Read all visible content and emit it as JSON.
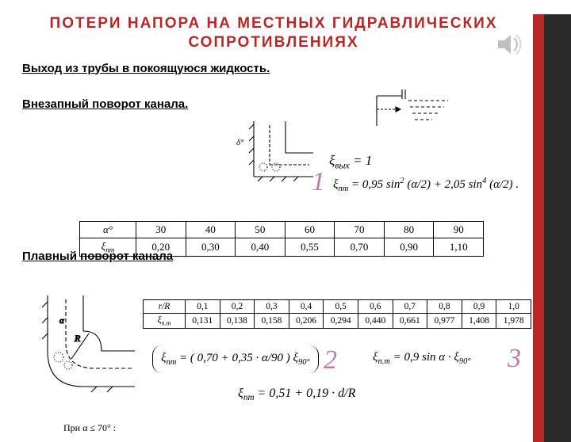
{
  "title_line1": "ПОТЕРИ  НАПОРА  НА  МЕСТНЫХ  ГИДРАВЛИЧЕСКИХ",
  "title_line2": "СОПРОТИВЛЕНИЯХ",
  "sub1": "Выход из трубы в покоящуюся жидкость.",
  "sub2": "Внезапный поворот канала.",
  "sub3": "Плавный поворот канала",
  "eq_exit": "ξ<sub>вых</sub> = 1",
  "eq_sudden": "ξ<sub>пт</sub> = 0,95 sin<sup>2</sup> (α/2) + 2,05 sin<sup>4</sup> (α/2) .",
  "table1": {
    "row1_head": "α°",
    "row2_head": "ξ<sub>пт</sub>",
    "cols": [
      "30",
      "40",
      "50",
      "60",
      "70",
      "80",
      "90"
    ],
    "vals": [
      "0,20",
      "0,30",
      "0,40",
      "0,55",
      "0,70",
      "0,90",
      "1,10"
    ]
  },
  "table2": {
    "row1_head": "r/R",
    "row2_head": "ξ<sub>п.т</sub>",
    "cols": [
      "0,1",
      "0,2",
      "0,3",
      "0,4",
      "0,5",
      "0,6",
      "0,7",
      "0,8",
      "0,9",
      "1,0"
    ],
    "vals": [
      "0,131",
      "0,138",
      "0,158",
      "0,206",
      "0,294",
      "0,440",
      "0,661",
      "0,977",
      "1,408",
      "1,978"
    ]
  },
  "eq_smooth1": "ξ<sub>пт</sub> = ( 0,70 + 0,35 · α/90 ) ξ<sub>90°</sub>",
  "eq_smooth2": "ξ<sub>п.т</sub> = 0,9 sin α · ξ<sub>90°</sub>",
  "eq_smooth3": "ξ<sub>пт</sub> = 0,51 + 0,19 · d/R",
  "note": "При  α ≤ 70° :",
  "num1": "1",
  "num2": "2",
  "num3": "3"
}
